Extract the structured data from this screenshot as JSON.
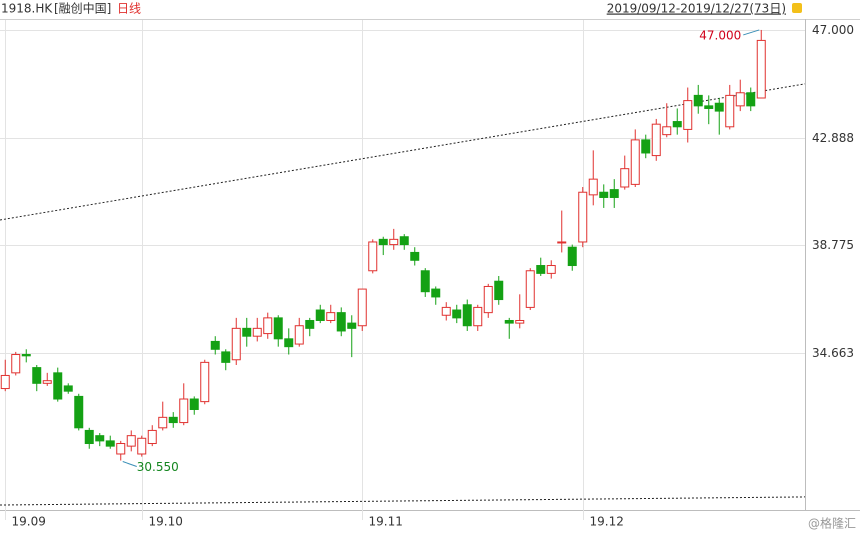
{
  "chart_data": {
    "type": "candlestick",
    "symbol": "1918.HK",
    "name": "[融创中国]",
    "period": "日线",
    "range_label": "2019/09/12-2019/12/27(73日)",
    "watermark": "@格隆汇",
    "categories": [
      "19.09",
      null,
      null,
      null,
      null,
      null,
      null,
      null,
      null,
      null,
      null,
      null,
      null,
      "19.10",
      null,
      null,
      null,
      null,
      null,
      null,
      null,
      null,
      null,
      null,
      null,
      null,
      null,
      null,
      null,
      null,
      null,
      null,
      null,
      null,
      "19.11",
      null,
      null,
      null,
      null,
      null,
      null,
      null,
      null,
      null,
      null,
      null,
      null,
      null,
      null,
      null,
      null,
      null,
      null,
      null,
      null,
      "19.12",
      null,
      null,
      null,
      null,
      null,
      null,
      null,
      null,
      null,
      null,
      null,
      null,
      null,
      null,
      null,
      null,
      null
    ],
    "open": [
      33.3,
      33.9,
      34.6,
      34.1,
      33.5,
      33.9,
      33.4,
      33.0,
      31.7,
      31.5,
      31.3,
      30.8,
      31.1,
      30.8,
      31.2,
      31.8,
      32.2,
      32.0,
      32.9,
      32.8,
      35.1,
      34.7,
      34.4,
      35.6,
      35.3,
      35.4,
      36.0,
      35.2,
      35.0,
      35.9,
      36.3,
      35.9,
      36.2,
      35.8,
      35.7,
      37.8,
      39.0,
      38.8,
      39.1,
      38.5,
      37.8,
      37.1,
      36.1,
      36.3,
      36.5,
      35.7,
      36.2,
      37.4,
      35.9,
      35.8,
      36.4,
      38.0,
      37.7,
      38.9,
      38.7,
      38.9,
      40.7,
      40.8,
      40.9,
      41.0,
      41.1,
      42.8,
      42.2,
      43.0,
      43.5,
      43.2,
      44.5,
      44.1,
      44.2,
      43.3,
      44.1,
      44.6,
      44.4
    ],
    "high": [
      34.4,
      34.7,
      34.8,
      34.2,
      33.9,
      34.1,
      33.5,
      33.1,
      31.8,
      31.6,
      31.5,
      31.3,
      31.7,
      31.5,
      31.9,
      32.8,
      32.4,
      33.5,
      33.0,
      34.4,
      35.3,
      34.8,
      36.0,
      36.0,
      36.0,
      36.2,
      36.1,
      35.6,
      36.0,
      36.0,
      36.5,
      36.5,
      36.4,
      36.1,
      37.1,
      39.0,
      39.1,
      39.4,
      39.2,
      38.7,
      37.9,
      37.2,
      36.6,
      36.5,
      36.7,
      36.5,
      37.3,
      37.6,
      36.0,
      36.9,
      37.9,
      38.3,
      38.2,
      40.1,
      38.8,
      41.0,
      42.4,
      41.1,
      41.3,
      42.2,
      43.2,
      43.0,
      43.6,
      44.2,
      44.0,
      44.8,
      44.9,
      44.5,
      44.4,
      44.9,
      45.1,
      44.8,
      47.0
    ],
    "low": [
      33.2,
      33.8,
      34.3,
      33.2,
      33.4,
      32.8,
      33.1,
      31.7,
      31.0,
      31.1,
      31.0,
      30.55,
      30.9,
      30.7,
      31.1,
      31.7,
      31.8,
      31.9,
      32.3,
      32.7,
      34.6,
      34.0,
      34.2,
      34.9,
      35.1,
      35.2,
      34.9,
      34.6,
      34.9,
      35.3,
      35.8,
      35.8,
      35.3,
      34.5,
      35.5,
      37.7,
      38.4,
      38.6,
      38.6,
      38.0,
      36.8,
      36.5,
      35.9,
      35.8,
      35.5,
      35.5,
      36.0,
      36.5,
      35.2,
      35.6,
      36.3,
      37.6,
      37.5,
      38.5,
      37.8,
      38.7,
      40.3,
      40.2,
      40.2,
      40.9,
      41.0,
      42.1,
      42.0,
      42.9,
      43.0,
      42.7,
      43.8,
      43.4,
      43.0,
      43.2,
      43.9,
      43.9,
      44.4
    ],
    "close": [
      33.8,
      34.6,
      34.55,
      33.5,
      33.6,
      32.9,
      33.2,
      31.8,
      31.2,
      31.3,
      31.1,
      31.2,
      31.5,
      31.4,
      31.7,
      32.2,
      32.0,
      32.9,
      32.5,
      34.3,
      34.8,
      34.3,
      35.6,
      35.3,
      35.6,
      36.0,
      35.2,
      34.9,
      35.7,
      35.6,
      35.9,
      36.2,
      35.5,
      35.6,
      37.1,
      38.9,
      38.8,
      39.0,
      38.8,
      38.2,
      37.0,
      36.8,
      36.4,
      36.0,
      35.7,
      36.4,
      37.2,
      36.7,
      35.8,
      35.9,
      37.8,
      37.7,
      38.0,
      38.9,
      38.0,
      40.8,
      41.3,
      40.6,
      40.6,
      41.7,
      42.8,
      42.3,
      43.4,
      43.3,
      43.3,
      44.3,
      44.1,
      44.0,
      43.9,
      44.5,
      44.6,
      44.1,
      46.6
    ],
    "up_color": "#e0312f",
    "down_color": "#14a114",
    "trend_lines": [
      [
        39.74,
        44.94
      ],
      [
        28.85,
        29.16
      ]
    ],
    "annotations": [
      {
        "text": "47.000",
        "color": "#d0021b"
      },
      {
        "text": "30.550",
        "color": "#14861f"
      }
    ],
    "ylim": [
      28.66,
      47.38
    ],
    "yticks": [
      {
        "value": 47,
        "label": "47.000"
      },
      42.888,
      38.775,
      34.663
    ],
    "grid": true
  }
}
